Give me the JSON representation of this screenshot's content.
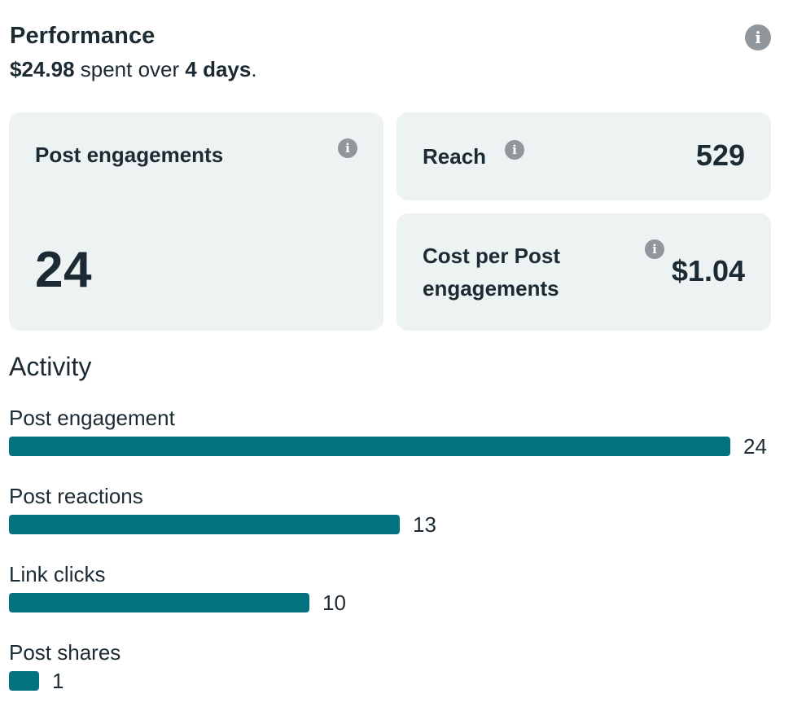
{
  "performance": {
    "title": "Performance",
    "spent_amount": "$24.98",
    "spent_text": " spent over ",
    "days": "4 days",
    "period_end": "."
  },
  "icons": {
    "info": "info-icon",
    "info_glyph": "i"
  },
  "cards": {
    "post_engagements": {
      "label": "Post engagements",
      "value": "24"
    },
    "reach": {
      "label": "Reach",
      "value": "529"
    },
    "cost_per_engagement": {
      "label": "Cost per Post engagements",
      "value": "$1.04"
    }
  },
  "activity": {
    "title": "Activity",
    "max_value": 24,
    "bar_color": "#047380",
    "rows": [
      {
        "label": "Post engagement",
        "value": 24
      },
      {
        "label": "Post reactions",
        "value": 13
      },
      {
        "label": "Link clicks",
        "value": 10
      },
      {
        "label": "Post shares",
        "value": 1
      }
    ]
  }
}
